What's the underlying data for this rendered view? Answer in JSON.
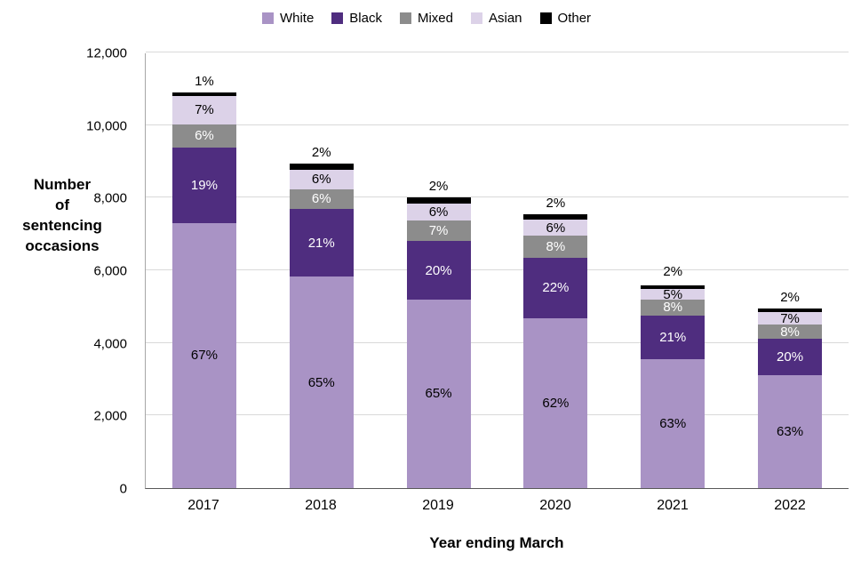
{
  "chart_data": {
    "type": "bar",
    "stacked": true,
    "title": "",
    "xlabel": "Year ending March",
    "ylabel": "Number of sentencing occasions",
    "ylabel_lines": [
      "Number",
      "of",
      "sentencing",
      "occasions"
    ],
    "categories": [
      "2017",
      "2018",
      "2019",
      "2020",
      "2021",
      "2022"
    ],
    "totals": [
      10900,
      8950,
      8000,
      7550,
      5650,
      4950
    ],
    "series": [
      {
        "name": "White",
        "color": "#a993c5",
        "label_color": "#000000",
        "percentages": [
          67,
          65,
          65,
          62,
          63,
          63
        ]
      },
      {
        "name": "Black",
        "color": "#4f2d7f",
        "label_color": "#ffffff",
        "percentages": [
          19,
          21,
          20,
          22,
          21,
          20
        ]
      },
      {
        "name": "Mixed",
        "color": "#8c8c8c",
        "label_color": "#ffffff",
        "percentages": [
          6,
          6,
          7,
          8,
          8,
          8
        ]
      },
      {
        "name": "Asian",
        "color": "#dcd2e8",
        "label_color": "#000000",
        "percentages": [
          7,
          6,
          6,
          6,
          5,
          7
        ]
      },
      {
        "name": "Other",
        "color": "#000000",
        "label_color": "#000000",
        "label_position": "above",
        "percentages": [
          1,
          2,
          2,
          2,
          2,
          2
        ]
      }
    ],
    "ylim": [
      0,
      12000
    ],
    "ytick_step": 2000,
    "yticks": [
      "0",
      "2,000",
      "4,000",
      "6,000",
      "8,000",
      "10,000",
      "12,000"
    ],
    "grid": true,
    "legend_position": "top",
    "colors": {
      "gridline": "#d9d9d9",
      "value_axis_line": "#a6a6a6",
      "category_axis_line": "#595959"
    }
  }
}
